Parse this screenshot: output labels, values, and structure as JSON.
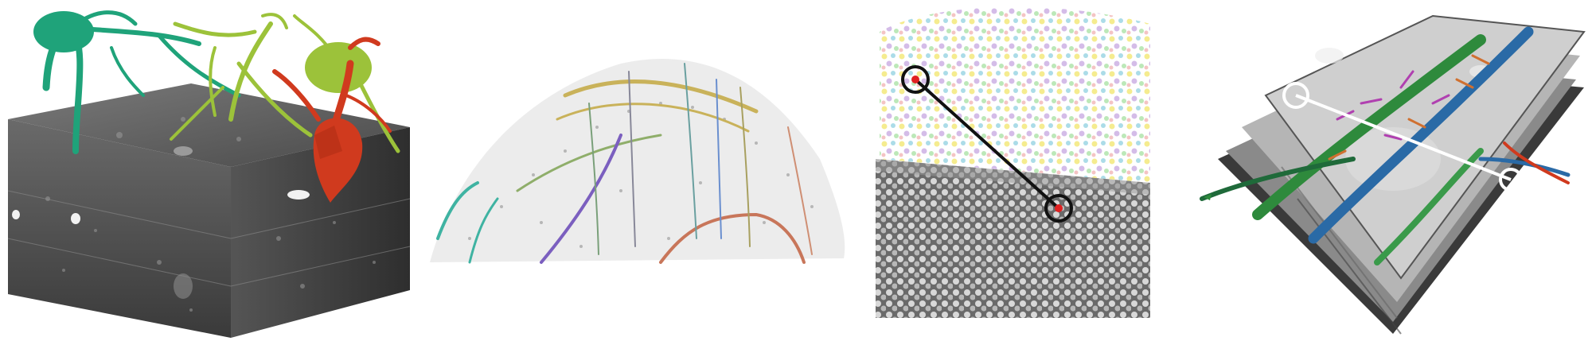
{
  "figure": {
    "panels": [
      {
        "id": "a",
        "content": "em-volume-with-neuron-reconstructions",
        "colors": {
          "neuron_teal": "#1fa37a",
          "neuron_lime": "#9cc23a",
          "neuron_red": "#d03a1e",
          "em_block": "#4a4a4a"
        }
      },
      {
        "id": "b",
        "content": "sparse-point-cloud-with-traced-fibers",
        "colors": {
          "fiber_gold": "#c9b25a",
          "fiber_purple": "#7b5fbf",
          "fiber_salmon": "#c8765a",
          "fiber_teal": "#3fb3a2"
        }
      },
      {
        "id": "c",
        "content": "segmented-nuclei-block-with-linked-pair",
        "colors": {
          "marker": "#e02020",
          "link": "#111111"
        }
      },
      {
        "id": "d",
        "content": "stacked-em-sections-with-dendrites",
        "colors": {
          "dendrite_green": "#2e8a3c",
          "dendrite_blue": "#2a6aa6",
          "link": "#ffffff"
        }
      }
    ]
  }
}
